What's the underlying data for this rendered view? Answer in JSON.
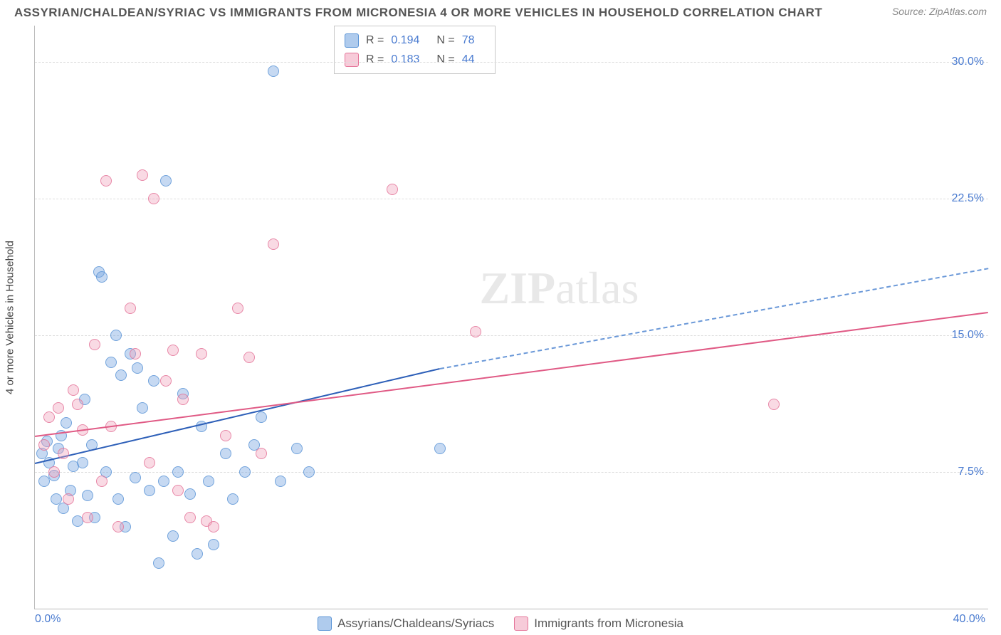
{
  "title": "ASSYRIAN/CHALDEAN/SYRIAC VS IMMIGRANTS FROM MICRONESIA 4 OR MORE VEHICLES IN HOUSEHOLD CORRELATION CHART",
  "source": "Source: ZipAtlas.com",
  "y_axis_title": "4 or more Vehicles in Household",
  "watermark_a": "ZIP",
  "watermark_b": "atlas",
  "chart": {
    "type": "scatter",
    "xlim": [
      0,
      40
    ],
    "ylim": [
      0,
      32
    ],
    "y_ticks": [
      7.5,
      15.0,
      22.5,
      30.0
    ],
    "y_tick_labels": [
      "7.5%",
      "15.0%",
      "22.5%",
      "30.0%"
    ],
    "x_ticks": [
      0,
      40
    ],
    "x_tick_labels": [
      "0.0%",
      "40.0%"
    ],
    "background_color": "#ffffff",
    "grid_color": "#dddddd",
    "series": [
      {
        "name": "Assyrians/Chaldeans/Syriacs",
        "color_fill": "rgba(122,168,225,0.5)",
        "color_stroke": "#5a94d6",
        "class": "blue",
        "R": "0.194",
        "N": "78",
        "trend": {
          "x1": 0,
          "y1": 8.0,
          "x2_solid": 17,
          "y2_solid": 13.2,
          "x2_dash": 40,
          "y2_dash": 18.7
        },
        "points": [
          [
            0.3,
            8.5
          ],
          [
            0.4,
            7.0
          ],
          [
            0.5,
            9.2
          ],
          [
            0.6,
            8.0
          ],
          [
            0.8,
            7.3
          ],
          [
            0.9,
            6.0
          ],
          [
            1.0,
            8.8
          ],
          [
            1.1,
            9.5
          ],
          [
            1.2,
            5.5
          ],
          [
            1.3,
            10.2
          ],
          [
            1.5,
            6.5
          ],
          [
            1.6,
            7.8
          ],
          [
            1.8,
            4.8
          ],
          [
            2.0,
            8.0
          ],
          [
            2.1,
            11.5
          ],
          [
            2.2,
            6.2
          ],
          [
            2.4,
            9.0
          ],
          [
            2.5,
            5.0
          ],
          [
            2.7,
            18.5
          ],
          [
            2.8,
            18.2
          ],
          [
            3.0,
            7.5
          ],
          [
            3.2,
            13.5
          ],
          [
            3.4,
            15.0
          ],
          [
            3.5,
            6.0
          ],
          [
            3.6,
            12.8
          ],
          [
            3.8,
            4.5
          ],
          [
            4.0,
            14.0
          ],
          [
            4.2,
            7.2
          ],
          [
            4.3,
            13.2
          ],
          [
            4.5,
            11.0
          ],
          [
            4.8,
            6.5
          ],
          [
            5.0,
            12.5
          ],
          [
            5.2,
            2.5
          ],
          [
            5.4,
            7.0
          ],
          [
            5.5,
            23.5
          ],
          [
            5.8,
            4.0
          ],
          [
            6.0,
            7.5
          ],
          [
            6.2,
            11.8
          ],
          [
            6.5,
            6.3
          ],
          [
            6.8,
            3.0
          ],
          [
            7.0,
            10.0
          ],
          [
            7.3,
            7.0
          ],
          [
            7.5,
            3.5
          ],
          [
            8.0,
            8.5
          ],
          [
            8.3,
            6.0
          ],
          [
            8.8,
            7.5
          ],
          [
            9.2,
            9.0
          ],
          [
            9.5,
            10.5
          ],
          [
            10.0,
            29.5
          ],
          [
            10.3,
            7.0
          ],
          [
            11.0,
            8.8
          ],
          [
            11.5,
            7.5
          ],
          [
            17.0,
            8.8
          ]
        ]
      },
      {
        "name": "Immigrants from Micronesia",
        "color_fill": "rgba(240,160,185,0.45)",
        "color_stroke": "#e47398",
        "class": "pink",
        "R": "0.183",
        "N": "44",
        "trend": {
          "x1": 0,
          "y1": 9.5,
          "x2_solid": 40,
          "y2_solid": 16.3
        },
        "points": [
          [
            0.4,
            9.0
          ],
          [
            0.6,
            10.5
          ],
          [
            0.8,
            7.5
          ],
          [
            1.0,
            11.0
          ],
          [
            1.2,
            8.5
          ],
          [
            1.4,
            6.0
          ],
          [
            1.6,
            12.0
          ],
          [
            1.8,
            11.2
          ],
          [
            2.0,
            9.8
          ],
          [
            2.2,
            5.0
          ],
          [
            2.5,
            14.5
          ],
          [
            2.8,
            7.0
          ],
          [
            3.0,
            23.5
          ],
          [
            3.2,
            10.0
          ],
          [
            3.5,
            4.5
          ],
          [
            4.0,
            16.5
          ],
          [
            4.2,
            14.0
          ],
          [
            4.5,
            23.8
          ],
          [
            4.8,
            8.0
          ],
          [
            5.0,
            22.5
          ],
          [
            5.5,
            12.5
          ],
          [
            5.8,
            14.2
          ],
          [
            6.0,
            6.5
          ],
          [
            6.2,
            11.5
          ],
          [
            6.5,
            5.0
          ],
          [
            7.0,
            14.0
          ],
          [
            7.2,
            4.8
          ],
          [
            7.5,
            4.5
          ],
          [
            8.0,
            9.5
          ],
          [
            8.5,
            16.5
          ],
          [
            9.0,
            13.8
          ],
          [
            9.5,
            8.5
          ],
          [
            10.0,
            20.0
          ],
          [
            15.0,
            23.0
          ],
          [
            18.5,
            15.2
          ],
          [
            31.0,
            11.2
          ]
        ]
      }
    ]
  },
  "legend_stats_labels": {
    "R": "R =",
    "N": "N ="
  },
  "bottom_legend": [
    {
      "label": "Assyrians/Chaldeans/Syriacs",
      "class": "swatch-blue"
    },
    {
      "label": "Immigrants from Micronesia",
      "class": "swatch-pink"
    }
  ]
}
